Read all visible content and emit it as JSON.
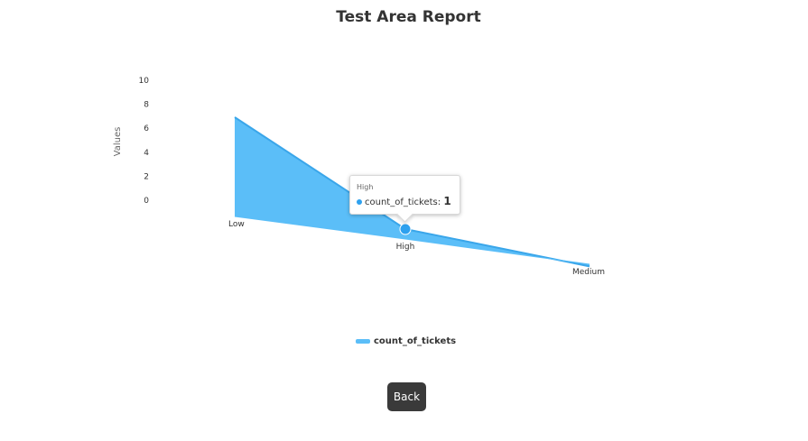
{
  "report": {
    "title": "Test Area Report"
  },
  "chart_data": {
    "type": "area",
    "title": "Test Area Report",
    "xlabel": "",
    "ylabel": "Values",
    "categories": [
      "Low",
      "High",
      "Medium"
    ],
    "series": [
      {
        "name": "count_of_tickets",
        "values": [
          7,
          1,
          -1
        ],
        "color": "#5bbef8"
      }
    ],
    "yticks": [
      "0",
      "2",
      "4",
      "6",
      "8",
      "10"
    ],
    "ylim": [
      0,
      10
    ],
    "grid": false,
    "legend": "bottom-center",
    "tooltip": {
      "category": "High",
      "series_name": "count_of_tickets",
      "separator": ":",
      "value": "1"
    }
  },
  "actions": {
    "back_label": "Back"
  }
}
